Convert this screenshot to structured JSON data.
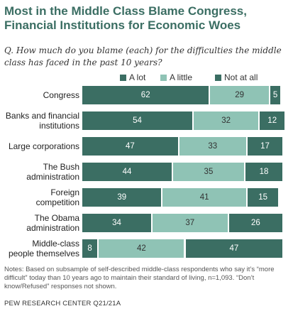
{
  "title": "Most in the Middle Class Blame Congress, Financial Institutions for Economic Woes",
  "question": "Q. How much do you blame (each) for the difficulties the middle class has faced in the past 10 years?",
  "notes": "Notes: Based on subsample of self-described middle-class respondents who say it’s “more difficult” today than 10 years ago to maintain their standard of living, n=1,093. “Don’t know/Refused” responses not shown.",
  "source": "PEW RESEARCH CENTER Q21/21A",
  "colors": {
    "a_lot": "#3b6e63",
    "a_little": "#8fc3b5",
    "not_at_all": "#3b6e63",
    "text_light": "#ffffff",
    "text_dark": "#333333",
    "title": "#3b6e63"
  },
  "chart_data": {
    "type": "bar",
    "orientation": "horizontal",
    "stacked": true,
    "categories": [
      "Congress",
      "Banks and financial institutions",
      "Large corporations",
      "The Bush administration",
      "Foreign competition",
      "The Obama administration",
      "Middle-class people themselves"
    ],
    "category_lines": [
      [
        "Congress"
      ],
      [
        "Banks and financial",
        "institutions"
      ],
      [
        "Large corporations"
      ],
      [
        "The Bush",
        "administration"
      ],
      [
        "Foreign",
        "competition"
      ],
      [
        "The Obama",
        "administration"
      ],
      [
        "Middle-class",
        "people themselves"
      ]
    ],
    "series": [
      {
        "name": "A lot",
        "values": [
          62,
          54,
          47,
          44,
          39,
          34,
          8
        ]
      },
      {
        "name": "A little",
        "values": [
          29,
          32,
          33,
          35,
          41,
          37,
          42
        ]
      },
      {
        "name": "Not at all",
        "values": [
          5,
          12,
          17,
          18,
          15,
          26,
          47
        ]
      }
    ],
    "xlim": [
      0,
      100
    ],
    "legend": "top"
  }
}
